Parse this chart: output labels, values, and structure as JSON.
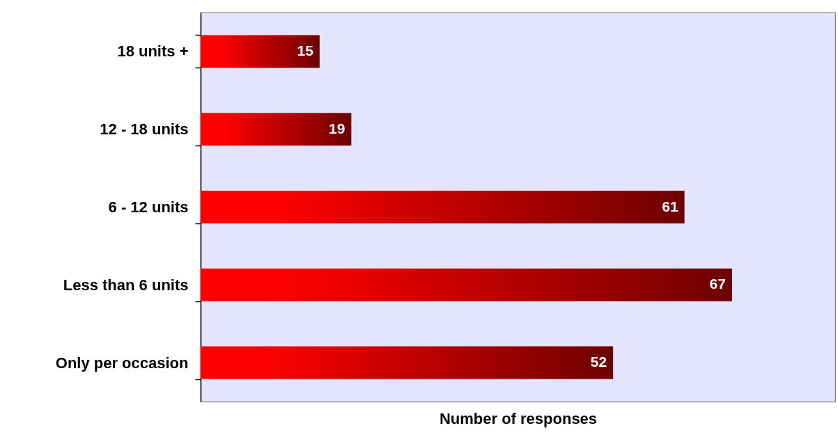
{
  "chart_data": {
    "type": "bar",
    "orientation": "horizontal",
    "categories": [
      "18 units +",
      "12 - 18 units",
      "6 - 12 units",
      "Less than 6 units",
      "Only per occasion"
    ],
    "values": [
      15,
      19,
      61,
      67,
      52
    ],
    "color": "#ff0000",
    "xlabel": "Number of responses",
    "xlim": [
      0,
      80
    ],
    "data_labels": true,
    "tick_labels": "y"
  }
}
